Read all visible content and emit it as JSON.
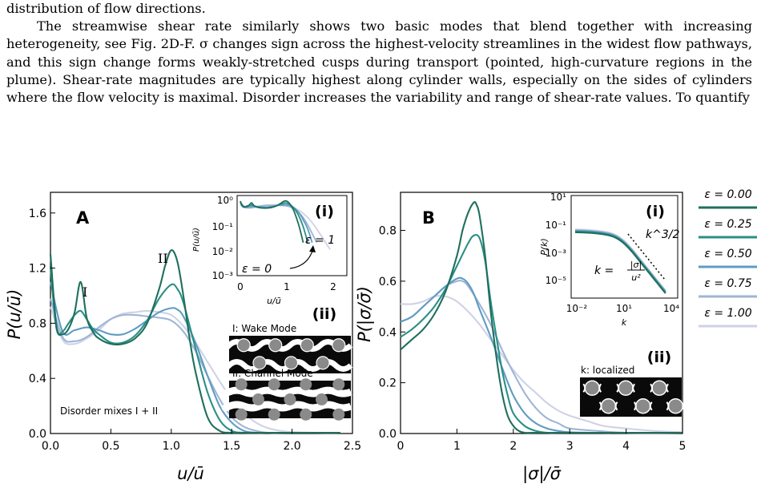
{
  "paragraphs": [
    "distribution of flow directions.",
    "The streamwise shear rate similarly shows two basic modes that blend together with increasing heterogeneity, see Fig. 2D-F. σ changes sign across the highest-velocity streamlines in the widest flow pathways, and this sign change forms weakly-stretched cusps during transport (pointed, high-curvature regions in the plume). Shear-rate magnitudes are typically highest along cylinder walls, especially on the sides of cylinders where the flow velocity is maximal. Disorder increases the variability and range of shear-rate values. To quantify"
  ],
  "legend": {
    "entries": [
      "ε = 0.00",
      "ε = 0.25",
      "ε = 0.50",
      "ε = 0.75",
      "ε = 1.00"
    ],
    "colors": [
      "#1f6f5c",
      "#2a8f86",
      "#5f9cc2",
      "#9fb5d6",
      "#cfd2e6"
    ]
  },
  "panelA": {
    "letter": "A",
    "xlabel": "u/ū",
    "ylabel": "P(u/ū)",
    "xticks": [
      "0.0",
      "0.5",
      "1.0",
      "1.5",
      "2.0",
      "2.5"
    ],
    "yticks": [
      "0.0",
      "0.4",
      "0.8",
      "1.2",
      "1.6"
    ],
    "peak1": "I",
    "peak2": "II",
    "note": "Disorder mixes I + II",
    "inset_i": {
      "tag": "(i)",
      "ylabel": "P(u/ū)",
      "xlabel": "u/ū",
      "yticks": [
        "10⁰",
        "10⁻¹",
        "10⁻²",
        "10⁻³"
      ],
      "xticks": [
        "0",
        "1",
        "2"
      ],
      "eps0": "ε = 0",
      "eps1": "ε = 1"
    },
    "inset_ii": {
      "tag": "(ii)",
      "wake": "I: Wake Mode",
      "channel": "II: Channel Mode"
    }
  },
  "panelB": {
    "letter": "B",
    "xlabel": "|σ|/σ̄",
    "ylabel": "P(|σ/σ̄)",
    "xticks": [
      "0",
      "1",
      "2",
      "3",
      "4",
      "5"
    ],
    "yticks": [
      "0.0",
      "0.2",
      "0.4",
      "0.6",
      "0.8"
    ],
    "inset_i": {
      "tag": "(i)",
      "ylabel": "P(k)",
      "xlabel": "k",
      "yticks": [
        "10¹",
        "10⁻¹",
        "10⁻³",
        "10⁻⁵"
      ],
      "xticks": [
        "10⁻²",
        "10¹",
        "10⁴"
      ],
      "slope": "k^3/2",
      "formula_lhs": "k =",
      "formula_num": "|σ|",
      "formula_den": "u²"
    },
    "inset_ii": {
      "tag": "(ii)",
      "label": "k: localized"
    }
  },
  "chart_data": [
    {
      "type": "line",
      "xlabel": "u/ū",
      "ylabel": "P(u/ū)",
      "xlim": [
        0,
        2.5
      ],
      "ylim": [
        0,
        1.75
      ],
      "series": [
        {
          "name": "ε = 0.00",
          "x": [
            0.0,
            0.05,
            0.1,
            0.15,
            0.2,
            0.25,
            0.3,
            0.35,
            0.4,
            0.5,
            0.6,
            0.7,
            0.8,
            0.9,
            0.95,
            1.0,
            1.05,
            1.1,
            1.15,
            1.2,
            1.3,
            1.4,
            1.5,
            1.6,
            1.8,
            2.0,
            2.4
          ],
          "y": [
            1.3,
            0.78,
            0.72,
            0.76,
            0.88,
            1.1,
            0.84,
            0.74,
            0.69,
            0.65,
            0.65,
            0.69,
            0.8,
            1.05,
            1.22,
            1.33,
            1.25,
            1.0,
            0.7,
            0.45,
            0.12,
            0.02,
            0.0,
            0.0,
            0.0,
            0.0,
            0.0
          ]
        },
        {
          "name": "ε = 0.25",
          "x": [
            0.0,
            0.05,
            0.1,
            0.15,
            0.2,
            0.25,
            0.3,
            0.35,
            0.4,
            0.5,
            0.6,
            0.7,
            0.8,
            0.9,
            1.0,
            1.05,
            1.1,
            1.2,
            1.3,
            1.4,
            1.5,
            1.6,
            1.8,
            2.0,
            2.4
          ],
          "y": [
            1.2,
            0.76,
            0.74,
            0.8,
            0.86,
            0.89,
            0.83,
            0.76,
            0.72,
            0.66,
            0.66,
            0.71,
            0.82,
            0.98,
            1.08,
            1.05,
            0.95,
            0.62,
            0.3,
            0.1,
            0.02,
            0.0,
            0.0,
            0.0,
            0.0
          ]
        },
        {
          "name": "ε = 0.50",
          "x": [
            0.0,
            0.1,
            0.2,
            0.3,
            0.4,
            0.5,
            0.6,
            0.7,
            0.8,
            0.9,
            1.0,
            1.05,
            1.1,
            1.2,
            1.3,
            1.4,
            1.5,
            1.6,
            1.7,
            1.8,
            2.0,
            2.4
          ],
          "y": [
            1.1,
            0.74,
            0.75,
            0.77,
            0.75,
            0.72,
            0.72,
            0.76,
            0.82,
            0.88,
            0.91,
            0.9,
            0.85,
            0.66,
            0.42,
            0.2,
            0.08,
            0.02,
            0.0,
            0.0,
            0.0,
            0.0
          ]
        },
        {
          "name": "ε = 0.75",
          "x": [
            0.0,
            0.1,
            0.2,
            0.3,
            0.4,
            0.5,
            0.6,
            0.7,
            0.8,
            0.9,
            1.0,
            1.1,
            1.2,
            1.3,
            1.4,
            1.5,
            1.6,
            1.7,
            1.8,
            2.0,
            2.4
          ],
          "y": [
            0.98,
            0.7,
            0.67,
            0.7,
            0.77,
            0.83,
            0.86,
            0.86,
            0.85,
            0.84,
            0.82,
            0.74,
            0.6,
            0.42,
            0.25,
            0.12,
            0.05,
            0.02,
            0.0,
            0.0,
            0.0
          ]
        },
        {
          "name": "ε = 1.00",
          "x": [
            0.0,
            0.1,
            0.2,
            0.3,
            0.4,
            0.5,
            0.6,
            0.7,
            0.8,
            0.9,
            1.0,
            1.1,
            1.2,
            1.3,
            1.4,
            1.5,
            1.6,
            1.7,
            1.8,
            1.9,
            2.0,
            2.2,
            2.4
          ],
          "y": [
            0.92,
            0.68,
            0.65,
            0.69,
            0.75,
            0.83,
            0.87,
            0.88,
            0.89,
            0.88,
            0.86,
            0.78,
            0.66,
            0.52,
            0.38,
            0.25,
            0.15,
            0.08,
            0.04,
            0.02,
            0.01,
            0.0,
            0.0
          ]
        }
      ]
    },
    {
      "type": "line",
      "xlabel": "|σ|/σ̄",
      "ylabel": "P(|σ/σ̄)",
      "xlim": [
        0,
        5
      ],
      "ylim": [
        0,
        0.95
      ],
      "series": [
        {
          "name": "ε = 0.00",
          "x": [
            0.0,
            0.2,
            0.4,
            0.6,
            0.8,
            1.0,
            1.1,
            1.2,
            1.3,
            1.35,
            1.4,
            1.5,
            1.6,
            1.7,
            1.8,
            1.9,
            2.0,
            2.1,
            2.2,
            2.4,
            2.6,
            3.0,
            5.0
          ],
          "y": [
            0.33,
            0.37,
            0.41,
            0.47,
            0.56,
            0.7,
            0.8,
            0.87,
            0.91,
            0.9,
            0.86,
            0.7,
            0.48,
            0.3,
            0.16,
            0.07,
            0.03,
            0.01,
            0.0,
            0.0,
            0.0,
            0.0,
            0.0
          ]
        },
        {
          "name": "ε = 0.25",
          "x": [
            0.0,
            0.2,
            0.4,
            0.6,
            0.8,
            1.0,
            1.2,
            1.3,
            1.4,
            1.5,
            1.6,
            1.7,
            1.8,
            1.9,
            2.0,
            2.2,
            2.4,
            2.6,
            3.0,
            5.0
          ],
          "y": [
            0.38,
            0.41,
            0.45,
            0.5,
            0.57,
            0.66,
            0.75,
            0.78,
            0.77,
            0.68,
            0.52,
            0.38,
            0.25,
            0.15,
            0.08,
            0.03,
            0.01,
            0.0,
            0.0,
            0.0
          ]
        },
        {
          "name": "ε = 0.50",
          "x": [
            0.0,
            0.2,
            0.4,
            0.6,
            0.8,
            1.0,
            1.1,
            1.2,
            1.3,
            1.4,
            1.6,
            1.8,
            2.0,
            2.2,
            2.4,
            2.6,
            2.8,
            3.0,
            3.5,
            5.0
          ],
          "y": [
            0.44,
            0.46,
            0.5,
            0.54,
            0.58,
            0.61,
            0.61,
            0.59,
            0.55,
            0.49,
            0.38,
            0.26,
            0.15,
            0.08,
            0.04,
            0.02,
            0.01,
            0.005,
            0.0,
            0.0
          ]
        },
        {
          "name": "ε = 0.75",
          "x": [
            0.0,
            0.2,
            0.4,
            0.6,
            0.8,
            1.0,
            1.1,
            1.2,
            1.4,
            1.6,
            1.8,
            2.0,
            2.2,
            2.4,
            2.6,
            2.8,
            3.0,
            3.5,
            4.0,
            5.0
          ],
          "y": [
            0.44,
            0.46,
            0.5,
            0.54,
            0.58,
            0.6,
            0.6,
            0.58,
            0.51,
            0.43,
            0.33,
            0.24,
            0.16,
            0.1,
            0.06,
            0.04,
            0.02,
            0.01,
            0.0,
            0.0
          ]
        },
        {
          "name": "ε = 1.00",
          "x": [
            0.0,
            0.2,
            0.4,
            0.6,
            0.8,
            1.0,
            1.2,
            1.4,
            1.6,
            1.8,
            2.0,
            2.2,
            2.4,
            2.6,
            2.8,
            3.0,
            3.3,
            3.6,
            4.0,
            4.5,
            5.0
          ],
          "y": [
            0.51,
            0.51,
            0.52,
            0.54,
            0.54,
            0.52,
            0.48,
            0.43,
            0.37,
            0.31,
            0.25,
            0.2,
            0.16,
            0.12,
            0.09,
            0.07,
            0.05,
            0.03,
            0.02,
            0.01,
            0.005
          ]
        }
      ]
    }
  ]
}
